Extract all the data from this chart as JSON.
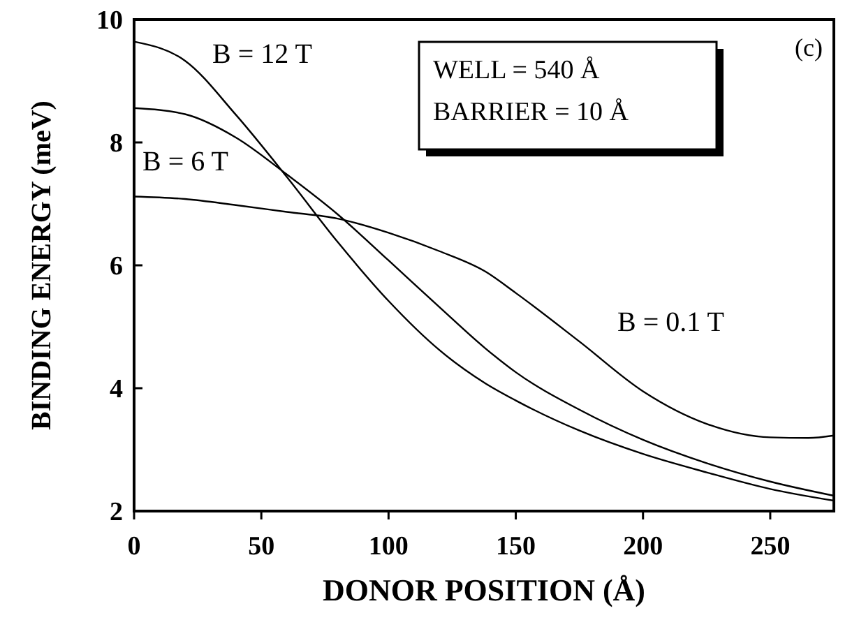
{
  "chart_data": {
    "type": "line",
    "xlabel": "DONOR POSITION (Å)",
    "ylabel": "BINDING ENERGY (meV)",
    "xlim": [
      0,
      275
    ],
    "ylim": [
      2,
      10
    ],
    "xticks": [
      0,
      50,
      100,
      150,
      200,
      250
    ],
    "yticks": [
      2,
      4,
      6,
      8,
      10
    ],
    "grid": false,
    "marker": "none",
    "line_style": "solid",
    "series": [
      {
        "color": "#000000",
        "x": [
          0,
          20,
          40,
          60,
          80,
          100,
          120,
          138,
          150,
          175,
          200,
          225,
          250,
          275
        ],
        "values": [
          9.64,
          9.33,
          8.45,
          7.44,
          6.38,
          5.42,
          4.62,
          4.08,
          3.8,
          3.31,
          2.93,
          2.63,
          2.36,
          2.17
        ]
      },
      {
        "color": "#000000",
        "x": [
          0,
          20,
          40,
          60,
          80,
          100,
          120,
          138,
          150,
          175,
          200,
          225,
          250,
          275
        ],
        "values": [
          8.56,
          8.46,
          8.08,
          7.48,
          6.83,
          6.08,
          5.32,
          4.65,
          4.26,
          3.65,
          3.16,
          2.78,
          2.48,
          2.25
        ]
      },
      {
        "color": "#000000",
        "x": [
          0,
          20,
          40,
          60,
          80,
          100,
          120,
          138,
          150,
          175,
          200,
          225,
          250,
          265,
          275
        ],
        "values": [
          7.12,
          7.08,
          6.98,
          6.87,
          6.76,
          6.53,
          6.23,
          5.9,
          5.55,
          4.76,
          3.95,
          3.42,
          3.2,
          3.19,
          3.23
        ]
      }
    ],
    "annotations": [
      "B = 12 T",
      "B = 6 T",
      "B = 0.1 T",
      "WELL = 540 Å",
      "BARRIER = 10 Å",
      "(c)"
    ]
  }
}
